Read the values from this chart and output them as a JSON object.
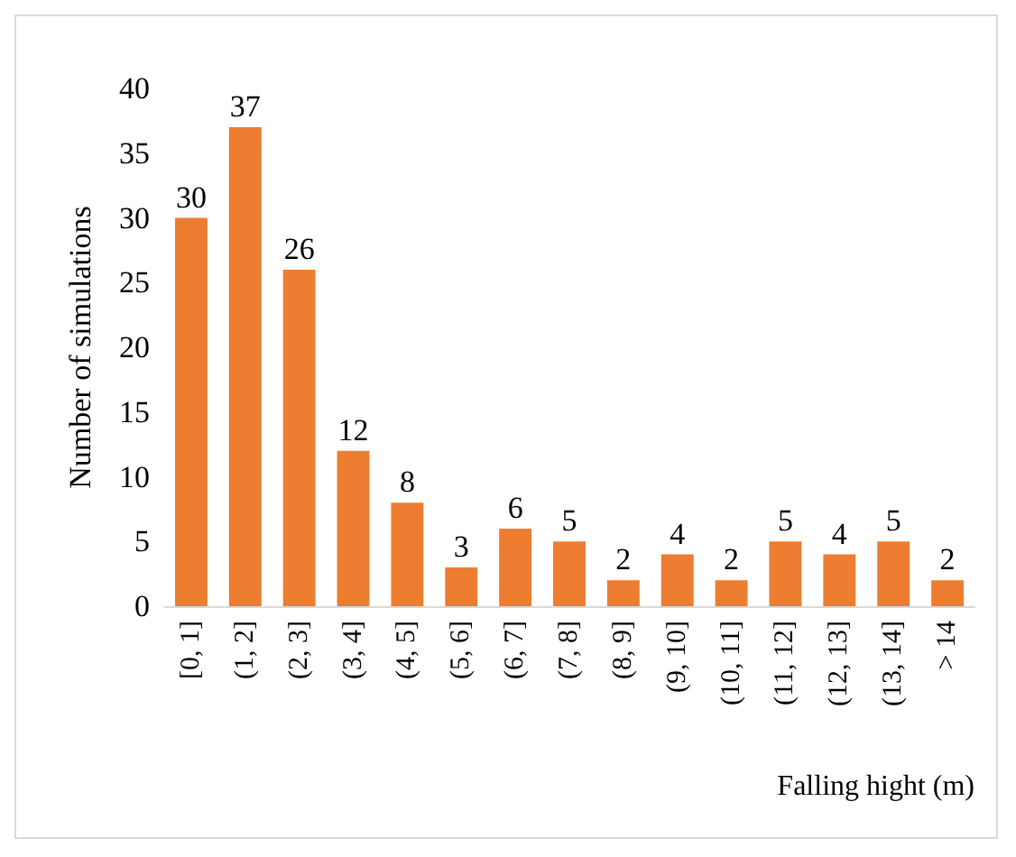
{
  "chart_data": {
    "type": "bar",
    "xlabel": "Falling hight (m)",
    "ylabel": "Number of simulations",
    "categories": [
      "[0, 1]",
      "(1, 2]",
      "(2, 3]",
      "(3, 4]",
      "(4, 5]",
      "(5, 6]",
      "(6, 7]",
      "(7, 8]",
      "(8, 9]",
      "(9, 10]",
      "(10, 11]",
      "(11, 12]",
      "(12, 13]",
      "(13, 14]",
      "> 14"
    ],
    "values": [
      30,
      37,
      26,
      12,
      8,
      3,
      6,
      5,
      2,
      4,
      2,
      5,
      4,
      5,
      2
    ],
    "color": "#ed7d31",
    "ylim": [
      0,
      40
    ],
    "yticks": [
      0,
      5,
      10,
      15,
      20,
      25,
      30,
      35,
      40
    ],
    "grid": false,
    "data_labels": true
  }
}
